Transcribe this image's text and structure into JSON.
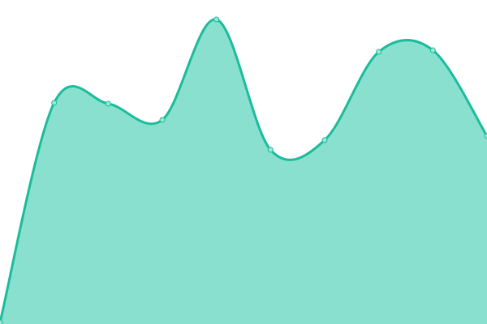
{
  "chart_data": {
    "type": "area",
    "title": "",
    "xlabel": "",
    "ylabel": "",
    "x": [
      0,
      1,
      2,
      3,
      4,
      5,
      6,
      7,
      8,
      9
    ],
    "values": [
      2,
      273,
      272,
      252,
      376,
      215,
      227,
      336,
      338,
      232
    ],
    "xlim": [
      0,
      9
    ],
    "ylim": [
      0,
      400
    ],
    "grid": false,
    "axes_visible": false,
    "curve": "smooth",
    "colors": {
      "line": "#1abc9c",
      "fill": "#89e0cf",
      "point_fill": "#9fe6d6",
      "point_stroke": "#1abc9c"
    }
  }
}
